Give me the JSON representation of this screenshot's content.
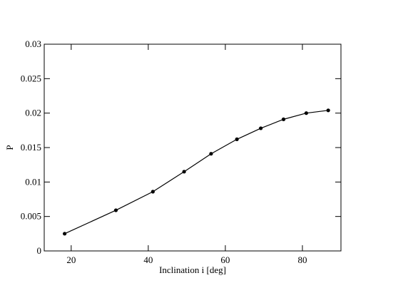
{
  "chart_data": {
    "type": "line",
    "x_label": "Inclination i [deg]",
    "y_label": "P",
    "x": [
      18.3,
      31.6,
      41.2,
      49.3,
      56.3,
      63,
      69.2,
      75.1,
      81,
      86.7
    ],
    "series": [
      {
        "color": "#000000",
        "values": [
          0.0025,
          0.0059,
          0.0086,
          0.0115,
          0.0141,
          0.0162,
          0.0178,
          0.0191,
          0.02,
          0.0204
        ]
      }
    ],
    "xlim": [
      13,
      90
    ],
    "xticks": [
      20,
      40,
      60,
      80
    ],
    "ylim": [
      0,
      0.03
    ],
    "yticks": [
      0,
      0.005,
      0.01,
      0.015,
      0.02,
      0.025,
      0.03
    ]
  }
}
